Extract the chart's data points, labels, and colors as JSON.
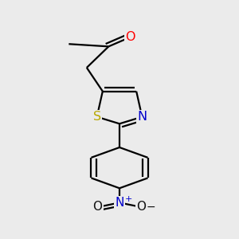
{
  "bg_color": "#ebebeb",
  "bond_color": "#000000",
  "bond_width": 1.6,
  "figsize": [
    3.0,
    3.0
  ],
  "dpi": 100,
  "xlim": [
    0.2,
    0.8
  ],
  "ylim": [
    0.02,
    0.98
  ]
}
